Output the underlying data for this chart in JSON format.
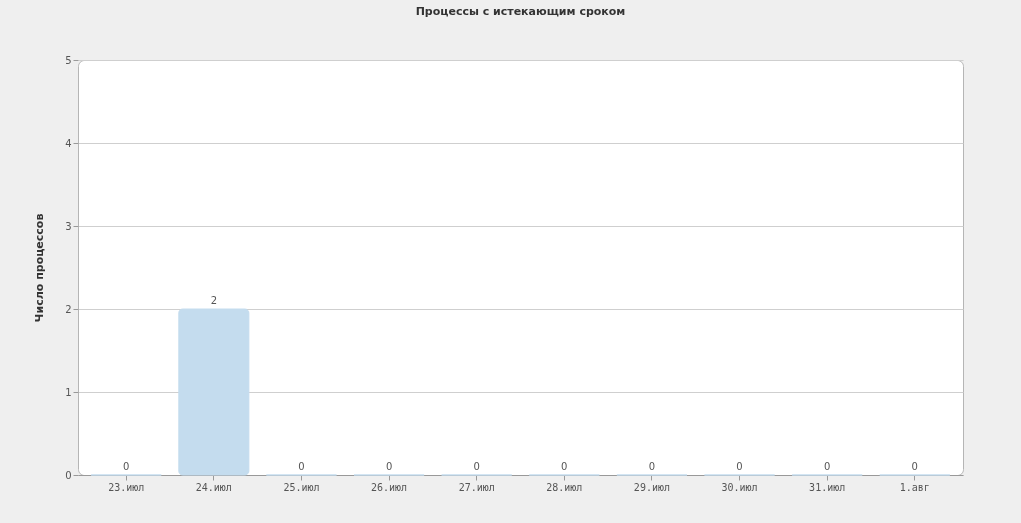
{
  "chart_data": {
    "type": "bar",
    "title": "Процессы с истекающим сроком",
    "ylabel": "Число процессов",
    "categories": [
      "23.июл",
      "24.июл",
      "25.июл",
      "26.июл",
      "27.июл",
      "28.июл",
      "29.июл",
      "30.июл",
      "31.июл",
      "1.авг"
    ],
    "values": [
      0,
      2,
      0,
      0,
      0,
      0,
      0,
      0,
      0,
      0
    ],
    "color": "#c4dcee",
    "ylim": [
      0,
      5
    ],
    "yticks": [
      0,
      1,
      2,
      3,
      4,
      5
    ],
    "grid": "y",
    "data_labels": true
  }
}
